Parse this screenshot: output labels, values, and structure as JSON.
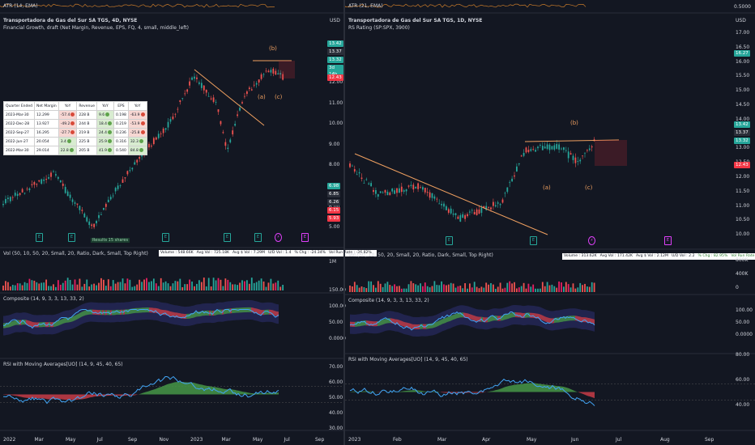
{
  "left": {
    "atr_label": "ATR (14, EMA)",
    "title": "Transportadora de Gas del Sur SA TGS, 4D, NYSE",
    "indicator": "Financial Growth, draft (Net Margin, Revenue, EPS, FQ, 4, small, middle_left)",
    "pattern_labels": {
      "b": "(b)",
      "a": "(a)",
      "c": "(c)"
    },
    "currency": "USD",
    "price_axis": [
      "12.00",
      "11.00",
      "10.00",
      "9.00",
      "8.00",
      "7.00",
      "6.00",
      "5.00"
    ],
    "price_tags": [
      {
        "text": "13.42",
        "color": "#26a69a"
      },
      {
        "text": "13.37",
        "color": "#2a2e39"
      },
      {
        "text": "13.32",
        "color": "#26a69a"
      },
      {
        "text": "3d 14h",
        "color": "#26a69a"
      },
      {
        "text": "12.43",
        "color": "#f23645"
      },
      {
        "text": "6.98",
        "color": "#26a69a"
      },
      {
        "text": "6.85",
        "color": "#2a2e39"
      },
      {
        "text": "6.26",
        "color": "#2a2e39"
      },
      {
        "text": "6.15",
        "color": "#f23645"
      },
      {
        "text": "5.93",
        "color": "#f23645"
      }
    ],
    "fin_table": {
      "headers": [
        "Quarter Ended",
        "Net Margin",
        "YoY",
        "Revenue",
        "YoY",
        "EPS",
        "YoY"
      ],
      "rows": [
        [
          "2023-Mar-30",
          "12.299",
          "-57.4",
          "228 B",
          "9.6",
          "0.198",
          "-63.9"
        ],
        [
          "2022-Dec-28",
          "13.927",
          "-49.2",
          "244 B",
          "18.4",
          "0.219",
          "-53.9"
        ],
        [
          "2022-Sep-27",
          "16.295",
          "-27.7",
          "219 B",
          "24.4",
          "0.236",
          "-25.8"
        ],
        [
          "2022-Jun-27",
          "20.054",
          "3.4",
          "225 B",
          "25.9",
          "0.316",
          "32.3"
        ],
        [
          "2022-Mar-30",
          "29.014",
          "22.8",
          "205 B",
          "41.9",
          "0.540",
          "84.8"
        ]
      ]
    },
    "balloon": "Results 15 shares",
    "vol_label": "Vol (50, 10, 50, 20, Small, 20, Ratio, Dark, Small, Top Right)",
    "vol_stats": [
      "Volume : 548.66K",
      "Avg Vol : 725.18K",
      "Avg $ Vol : 7.29M",
      "U/D Vol : 1.4",
      "% Chg : -24.34%",
      "Vol Run Rate : -26.82%"
    ],
    "vol_axis": "1M",
    "composite_label": "Composite (14, 9, 3, 3, 13, 33, 2)",
    "composite_axis": [
      "150.00",
      "100.00",
      "50.00",
      "0.0000"
    ],
    "rsi_label": "RSI with Moving Averages[UO] (14, 9, 45, 40, 65)",
    "rsi_axis": [
      "70.00",
      "60.00",
      "50.00",
      "40.00",
      "30.00"
    ],
    "time_axis": [
      "2022",
      "Mar",
      "May",
      "Jul",
      "Sep",
      "Nov",
      "2023",
      "Mar",
      "May",
      "Jul",
      "Sep"
    ]
  },
  "right": {
    "atr_label": "ATR (21, EMA)",
    "atr_value": "0.5000",
    "title": "Transportadora de Gas del Sur SA TGS, 1D, NYSE",
    "indicator": "RS Rating (SP:SPX, 3900)",
    "pattern_labels": {
      "b": "(b)",
      "a": "(a)",
      "c": "(c)"
    },
    "currency": "USD",
    "price_axis": [
      "17.00",
      "16.50",
      "16.00",
      "15.50",
      "15.00",
      "14.50",
      "14.00",
      "13.50",
      "13.00",
      "12.50",
      "12.00",
      "11.50",
      "11.00",
      "10.50",
      "10.00"
    ],
    "price_tags": [
      {
        "text": "16.27",
        "color": "#26a69a"
      },
      {
        "text": "13.42",
        "color": "#26a69a"
      },
      {
        "text": "13.37",
        "color": "#2a2e39"
      },
      {
        "text": "13.32",
        "color": "#26a69a"
      },
      {
        "text": "12.43",
        "color": "#f23645"
      }
    ],
    "vol_label": "Vol (50, 10, 50, 20, Small, 20, Ratio, Dark, Small, Top Right)",
    "vol_stats": [
      "Volume : 313.62K",
      "Avg Vol : 171.42K",
      "Avg $ Vol : 2.12M",
      "U/D Vol : 2.2",
      "% Chg : 82.95%",
      "Vol Run Rate : 107.89%"
    ],
    "vol_axis": [
      "800K",
      "400K",
      "0"
    ],
    "composite_label": "Composite (14, 9, 3, 3, 13, 33, 2)",
    "composite_axis": [
      "100.00",
      "50.00",
      "0.0000"
    ],
    "rsi_label": "RSI with Moving Averages[UO] (14, 9, 45, 40, 65)",
    "rsi_axis": [
      "80.00",
      "60.00",
      "40.00"
    ],
    "time_axis": [
      "2023",
      "Feb",
      "Mar",
      "Apr",
      "May",
      "Jun",
      "Jul",
      "Aug",
      "Sep"
    ]
  },
  "colors": {
    "up": "#26a69a",
    "down": "#ef5350",
    "bg": "#131722",
    "trend": "#f0a060",
    "accent": "#2962ff"
  }
}
